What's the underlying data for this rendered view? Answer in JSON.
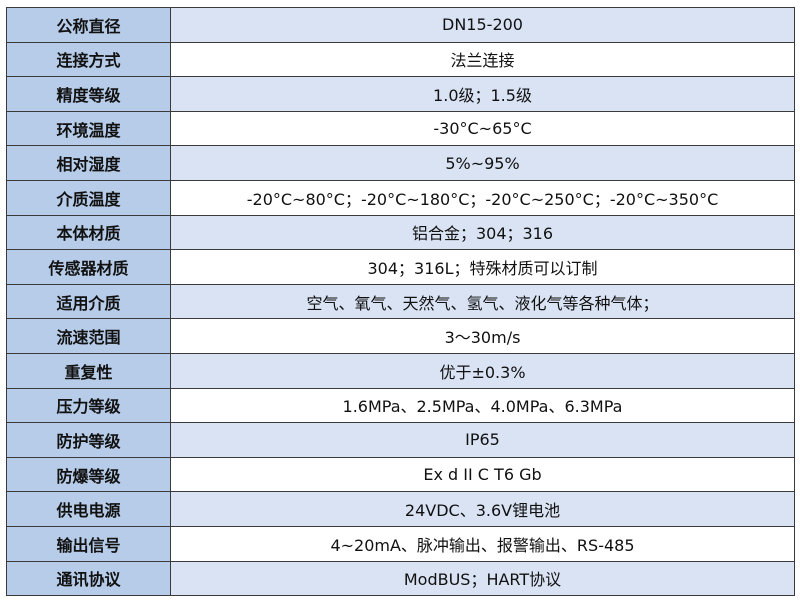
{
  "table": {
    "rows": [
      {
        "label": "公称直径",
        "value": "DN15-200"
      },
      {
        "label": "连接方式",
        "value": "法兰连接"
      },
      {
        "label": "精度等级",
        "value": "1.0级；1.5级"
      },
      {
        "label": "环境温度",
        "value": "-30°C~65°C"
      },
      {
        "label": "相对湿度",
        "value": "5%~95%"
      },
      {
        "label": "介质温度",
        "value": "-20°C~80°C；-20°C~180°C；-20°C~250°C；-20°C~350°C"
      },
      {
        "label": "本体材质",
        "value": "铝合金；304；316"
      },
      {
        "label": "传感器材质",
        "value": "304；316L；特殊材质可以订制"
      },
      {
        "label": "适用介质",
        "value": "空气、氧气、天然气、氢气、液化气等各种气体；"
      },
      {
        "label": "流速范围",
        "value": "3～30m/s"
      },
      {
        "label": "重复性",
        "value": "优于±0.3%"
      },
      {
        "label": "压力等级",
        "value": "1.6MPa、2.5MPa、4.0MPa、6.3MPa"
      },
      {
        "label": "防护等级",
        "value": "IP65"
      },
      {
        "label": "防爆等级",
        "value": "Ex d II C T6 Gb"
      },
      {
        "label": "供电电源",
        "value": "24VDC、3.6V锂电池"
      },
      {
        "label": "输出信号",
        "value": "4~20mA、脉冲输出、报警输出、RS-485"
      },
      {
        "label": "通讯协议",
        "value": "ModBUS；HART协议"
      }
    ]
  }
}
